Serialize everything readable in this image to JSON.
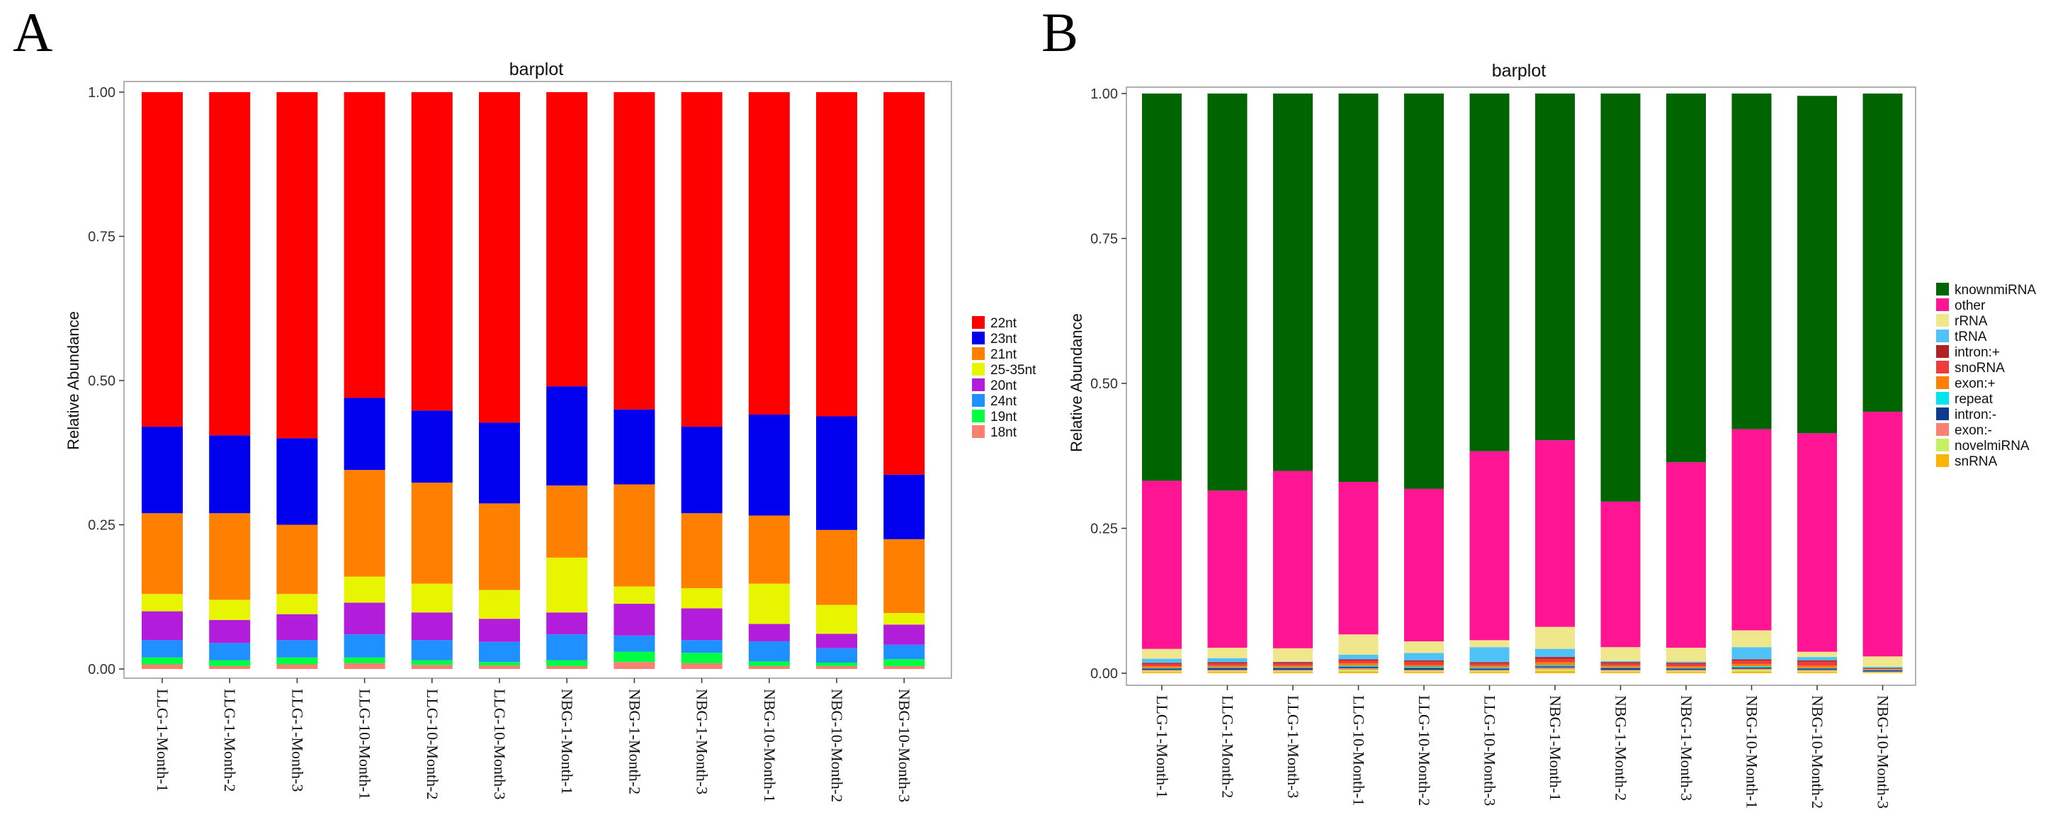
{
  "panels": [
    {
      "letter": "A",
      "chart_data": {
        "type": "bar",
        "stacked": true,
        "title": "barplot",
        "xlabel": "",
        "ylabel": "Relative Abundance",
        "ylim": [
          0,
          1
        ],
        "yticks": [
          "0.00",
          "0.25",
          "0.50",
          "0.75",
          "1.00"
        ],
        "categories": [
          "LLG-1-Month-1",
          "LLG-1-Month-2",
          "LLG-1-Month-3",
          "LLG-10-Month-1",
          "LLG-10-Month-2",
          "LLG-10-Month-3",
          "NBG-1-Month-1",
          "NBG-1-Month-2",
          "NBG-1-Month-3",
          "NBG-10-Month-1",
          "NBG-10-Month-2",
          "NBG-10-Month-3"
        ],
        "legend_position": "right",
        "series": [
          {
            "name": "18nt",
            "color": "#FA8072",
            "values": [
              0.008,
              0.005,
              0.008,
              0.01,
              0.007,
              0.006,
              0.005,
              0.012,
              0.01,
              0.005,
              0.005,
              0.005
            ]
          },
          {
            "name": "19nt",
            "color": "#00FF40",
            "values": [
              0.012,
              0.01,
              0.012,
              0.01,
              0.008,
              0.006,
              0.01,
              0.018,
              0.018,
              0.008,
              0.006,
              0.012
            ]
          },
          {
            "name": "24nt",
            "color": "#1E90FF",
            "values": [
              0.03,
              0.03,
              0.03,
              0.04,
              0.035,
              0.035,
              0.045,
              0.028,
              0.022,
              0.035,
              0.025,
              0.025
            ]
          },
          {
            "name": "20nt",
            "color": "#B21CDB",
            "values": [
              0.05,
              0.04,
              0.045,
              0.055,
              0.048,
              0.04,
              0.038,
              0.055,
              0.055,
              0.03,
              0.025,
              0.035
            ]
          },
          {
            "name": "25-35nt",
            "color": "#E8F500",
            "values": [
              0.03,
              0.035,
              0.035,
              0.045,
              0.05,
              0.05,
              0.095,
              0.03,
              0.035,
              0.07,
              0.05,
              0.02
            ]
          },
          {
            "name": "21nt",
            "color": "#FF8000",
            "values": [
              0.14,
              0.15,
              0.12,
              0.185,
              0.175,
              0.15,
              0.125,
              0.177,
              0.13,
              0.118,
              0.13,
              0.128
            ]
          },
          {
            "name": "23nt",
            "color": "#0000EE",
            "values": [
              0.15,
              0.135,
              0.15,
              0.125,
              0.125,
              0.14,
              0.172,
              0.13,
              0.15,
              0.175,
              0.197,
              0.112
            ]
          },
          {
            "name": "22nt",
            "color": "#FF0000",
            "values": [
              0.58,
              0.595,
              0.6,
              0.53,
              0.552,
              0.573,
              0.51,
              0.55,
              0.58,
              0.559,
              0.562,
              0.663
            ]
          }
        ],
        "legend_order": [
          "22nt",
          "23nt",
          "21nt",
          "25-35nt",
          "20nt",
          "24nt",
          "19nt",
          "18nt"
        ]
      }
    },
    {
      "letter": "B",
      "chart_data": {
        "type": "bar",
        "stacked": true,
        "title": "barplot",
        "xlabel": "",
        "ylabel": "Relative Abundance",
        "ylim": [
          0,
          1
        ],
        "yticks": [
          "0.00",
          "0.25",
          "0.50",
          "0.75",
          "1.00"
        ],
        "categories": [
          "LLG-1-Month-1",
          "LLG-1-Month-2",
          "LLG-1-Month-3",
          "LLG-10-Month-1",
          "LLG-10-Month-2",
          "LLG-10-Month-3",
          "NBG-1-Month-1",
          "NBG-1-Month-2",
          "NBG-1-Month-3",
          "NBG-10-Month-1",
          "NBG-10-Month-2",
          "NBG-10-Month-3"
        ],
        "legend_position": "right",
        "series": [
          {
            "name": "snRNA",
            "color": "#FFB300",
            "values": [
              0.002,
              0.002,
              0.002,
              0.003,
              0.002,
              0.002,
              0.004,
              0.002,
              0.002,
              0.003,
              0.002,
              0.001
            ]
          },
          {
            "name": "novelmiRNA",
            "color": "#C8F060",
            "values": [
              0.002,
              0.002,
              0.002,
              0.003,
              0.002,
              0.002,
              0.003,
              0.002,
              0.002,
              0.003,
              0.002,
              0.001
            ]
          },
          {
            "name": "exon:-",
            "color": "#FA8072",
            "values": [
              0.002,
              0.002,
              0.002,
              0.003,
              0.002,
              0.002,
              0.003,
              0.002,
              0.002,
              0.002,
              0.002,
              0.001
            ]
          },
          {
            "name": "intron:-",
            "color": "#0B3B8C",
            "values": [
              0.002,
              0.003,
              0.003,
              0.002,
              0.003,
              0.002,
              0.002,
              0.003,
              0.002,
              0.002,
              0.002,
              0.002
            ]
          },
          {
            "name": "repeat",
            "color": "#00E5EE",
            "values": [
              0.001,
              0.001,
              0.001,
              0.002,
              0.002,
              0.002,
              0.002,
              0.001,
              0.001,
              0.002,
              0.001,
              0.001
            ]
          },
          {
            "name": "exon:+",
            "color": "#FF7F00",
            "values": [
              0.003,
              0.003,
              0.003,
              0.004,
              0.003,
              0.003,
              0.005,
              0.003,
              0.003,
              0.004,
              0.004,
              0.001
            ]
          },
          {
            "name": "snoRNA",
            "color": "#EE3B3B",
            "values": [
              0.004,
              0.004,
              0.004,
              0.005,
              0.006,
              0.004,
              0.006,
              0.004,
              0.004,
              0.006,
              0.007,
              0.001
            ]
          },
          {
            "name": "intron:+",
            "color": "#B22222",
            "values": [
              0.002,
              0.002,
              0.002,
              0.002,
              0.002,
              0.002,
              0.003,
              0.002,
              0.002,
              0.002,
              0.002,
              0.001
            ]
          },
          {
            "name": "tRNA",
            "color": "#4FC3F7",
            "values": [
              0.007,
              0.007,
              0.001,
              0.008,
              0.013,
              0.026,
              0.014,
              0.002,
              0.002,
              0.021,
              0.006,
              0.002
            ]
          },
          {
            "name": "rRNA",
            "color": "#F0E68C",
            "values": [
              0.017,
              0.018,
              0.023,
              0.035,
              0.02,
              0.012,
              0.038,
              0.024,
              0.024,
              0.029,
              0.009,
              0.018
            ]
          },
          {
            "name": "other",
            "color": "#FF1493",
            "values": [
              0.29,
              0.271,
              0.306,
              0.263,
              0.263,
              0.326,
              0.322,
              0.251,
              0.32,
              0.347,
              0.377,
              0.422
            ]
          },
          {
            "name": "knownmiRNA",
            "color": "#006400",
            "values": [
              0.668,
              0.685,
              0.651,
              0.67,
              0.682,
              0.617,
              0.598,
              0.704,
              0.636,
              0.579,
              0.582,
              0.549
            ]
          }
        ],
        "legend_order": [
          "knownmiRNA",
          "other",
          "rRNA",
          "tRNA",
          "intron:+",
          "snoRNA",
          "exon:+",
          "repeat",
          "intron:-",
          "exon:-",
          "novelmiRNA",
          "snRNA"
        ]
      }
    }
  ]
}
